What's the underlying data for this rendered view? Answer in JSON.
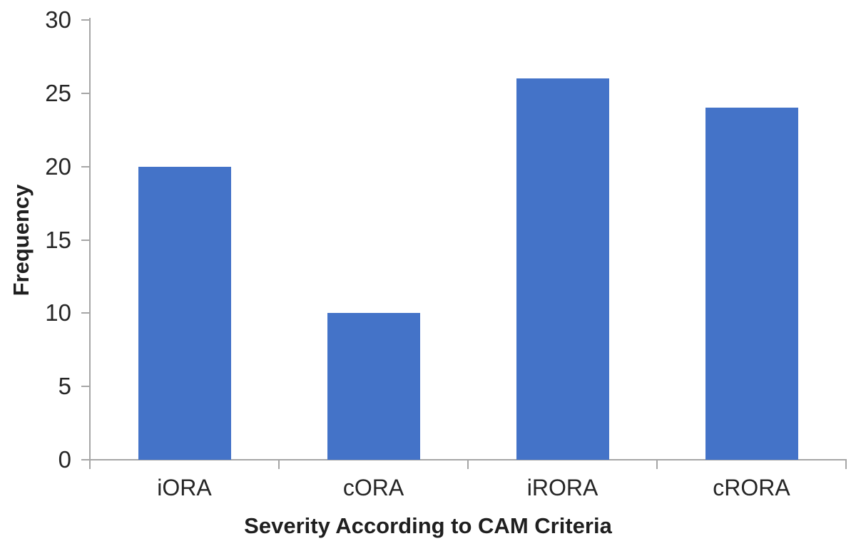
{
  "chart_data": {
    "type": "bar",
    "title": "",
    "xlabel": "Severity According to CAM Criteria",
    "ylabel": "Frequency",
    "categories": [
      "iORA",
      "cORA",
      "iRORA",
      "cRORA"
    ],
    "values": [
      20,
      10,
      26,
      24
    ],
    "ylim": [
      0,
      30
    ],
    "yticks": [
      0,
      5,
      10,
      15,
      20,
      25,
      30
    ],
    "grid": false,
    "legend": false,
    "bar_color": "#4473C8",
    "axis_color": "#A6A6A6",
    "text_color": "#262626"
  }
}
